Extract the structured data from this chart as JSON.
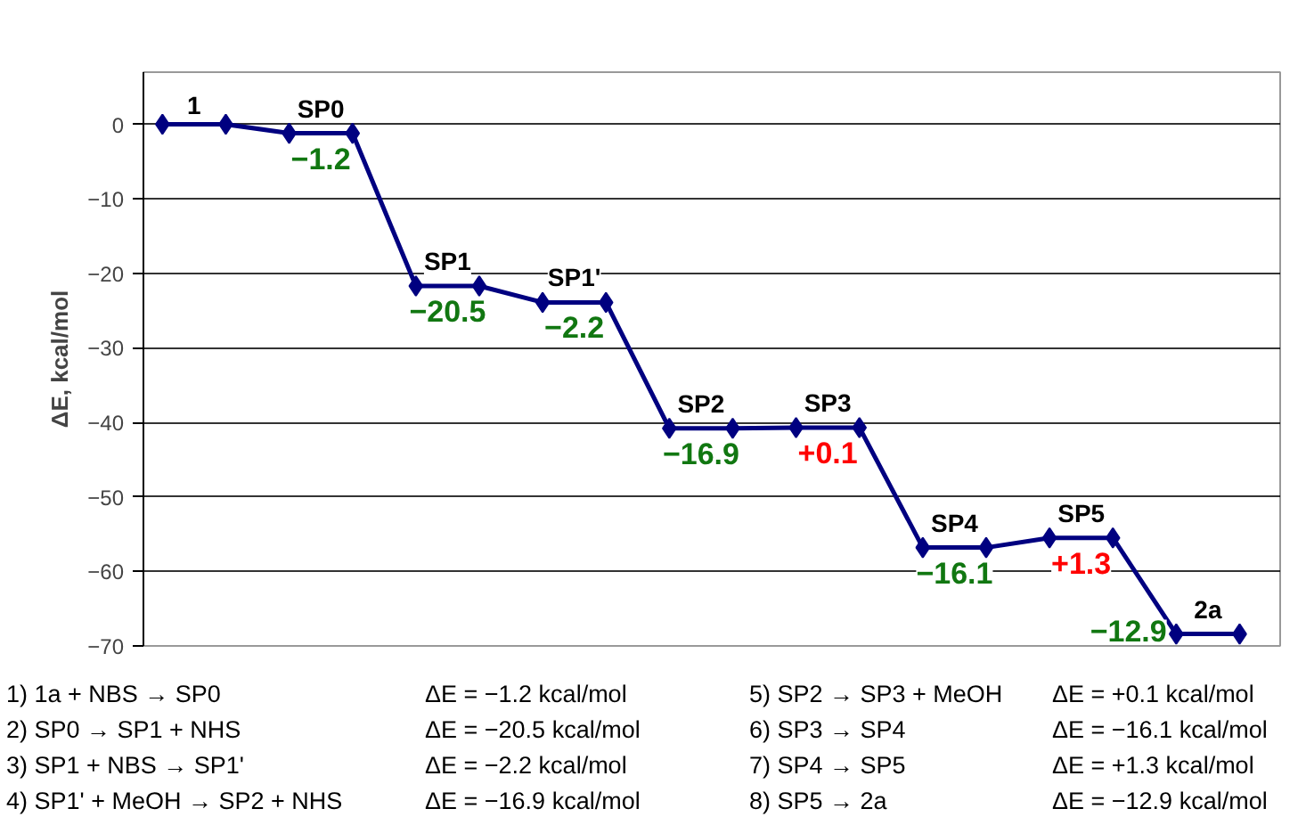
{
  "chart_data": {
    "type": "line",
    "ylabel": "ΔE, kcal/mol",
    "categories": [
      null,
      null,
      null,
      null,
      null,
      null,
      null,
      null,
      null,
      null,
      null,
      null,
      null,
      null,
      null,
      null,
      null,
      null
    ],
    "series": [
      {
        "color": "#000080",
        "values": [
          0,
          0,
          -1.2,
          -1.2,
          -21.7,
          -21.7,
          -23.9,
          -23.9,
          -40.8,
          -40.8,
          -40.7,
          -40.7,
          -56.8,
          -56.8,
          -55.5,
          -55.5,
          -68.4,
          -68.4
        ]
      }
    ],
    "ylim": [
      -70,
      0
    ],
    "yticks": [
      {
        "value": 0,
        "label": "0"
      },
      {
        "value": -10,
        "label": "−10"
      },
      {
        "value": -20,
        "label": "−20"
      },
      {
        "value": -30,
        "label": "−30"
      },
      {
        "value": -40,
        "label": "−40"
      },
      {
        "value": -50,
        "label": "−50"
      },
      {
        "value": -60,
        "label": "−60"
      },
      {
        "value": -70,
        "label": "−70"
      }
    ],
    "grid": "y",
    "marker": "diamond",
    "line_style": "solid",
    "annotations": [
      {
        "text": "1",
        "y": 0
      },
      {
        "text": "SP0",
        "y": -1.2
      },
      {
        "text": "SP1",
        "y": -21.7
      },
      {
        "text": "SP1'",
        "y": -23.9
      },
      {
        "text": "SP2",
        "y": -40.8
      },
      {
        "text": "SP3",
        "y": -40.7
      },
      {
        "text": "SP4",
        "y": -56.8
      },
      {
        "text": "SP5",
        "y": -55.5
      },
      {
        "text": "2a",
        "y": -68.4
      },
      "−1.2",
      "−20.5",
      "−2.2",
      "−16.9",
      "+0.1",
      "−16.1",
      "+1.3",
      "−12.9",
      "1) 1a + NBS → SP0",
      "ΔE =  −1.2 kcal/mol",
      "2) SP0 → SP1 + NHS",
      "ΔE =  −20.5 kcal/mol",
      "3) SP1 + NBS → SP1'",
      "ΔE =  −2.2 kcal/mol",
      "4) SP1' + MeOH → SP2 + NHS",
      "ΔE =  −16.9 kcal/mol",
      "5) SP2 → SP3 + MeOH",
      "ΔE =  +0.1 kcal/mol",
      "6) SP3 → SP4",
      "ΔE =  −16.1 kcal/mol",
      "7) SP4 → SP5",
      "ΔE =  +1.3 kcal/mol",
      "8) SP5 → 2a",
      "ΔE =  −12.9 kcal/mol"
    ]
  }
}
